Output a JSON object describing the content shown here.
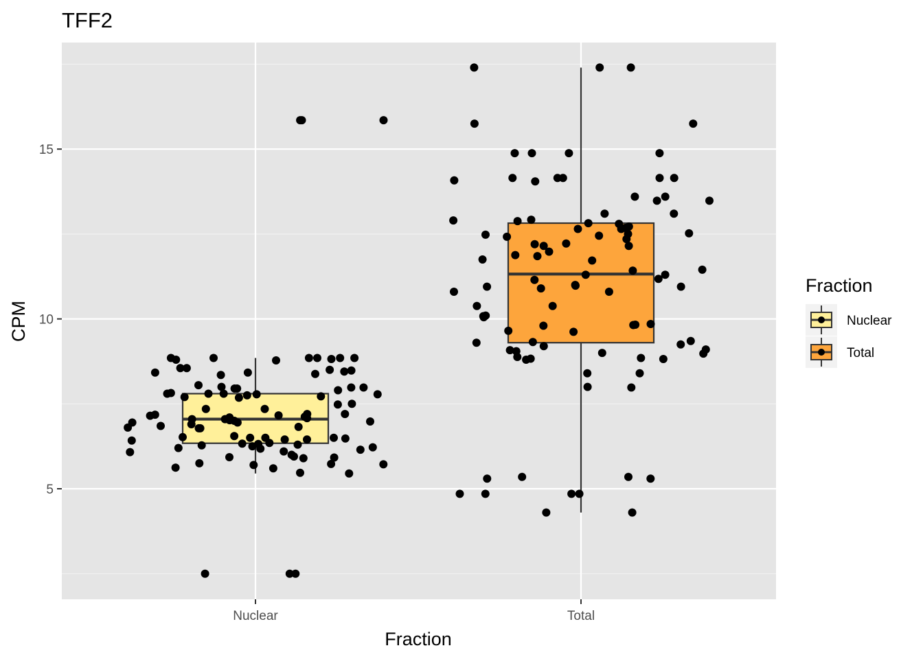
{
  "chart_data": {
    "type": "box",
    "title": "TFF2",
    "xlabel": "Fraction",
    "ylabel": "CPM",
    "categories": [
      "Nuclear",
      "Total"
    ],
    "ylim": [
      1.9,
      18.3
    ],
    "yticks": [
      5,
      10,
      15
    ],
    "grid": true,
    "legend": {
      "title": "Fraction",
      "position": "right",
      "entries": [
        {
          "label": "Nuclear",
          "color": "#FFF09A"
        },
        {
          "label": "Total",
          "color": "#FDA53C"
        }
      ]
    },
    "boxes": [
      {
        "category": "Nuclear",
        "color": "#FFF09A",
        "whisker_low": 5.45,
        "q1": 6.34,
        "median": 7.05,
        "q3": 7.8,
        "whisker_high": 8.85
      },
      {
        "category": "Total",
        "color": "#FDA53C",
        "whisker_low": 4.3,
        "q1": 9.3,
        "median": 11.32,
        "q3": 12.82,
        "whisker_high": 17.4
      }
    ],
    "points": [
      {
        "category": "Nuclear",
        "values": [
          2.5,
          2.5,
          2.5,
          15.85,
          15.85,
          15.85,
          8.85,
          8.85,
          8.85,
          8.85,
          8.85,
          8.85,
          8.82,
          8.8,
          8.78,
          8.55,
          8.55,
          8.5,
          8.48,
          8.45,
          8.42,
          8.42,
          8.38,
          8.35,
          8.05,
          8.0,
          7.98,
          7.98,
          7.95,
          7.95,
          7.9,
          7.82,
          7.8,
          7.8,
          7.8,
          7.78,
          7.78,
          7.75,
          7.72,
          7.7,
          7.68,
          7.5,
          7.48,
          7.35,
          7.35,
          7.2,
          7.2,
          7.18,
          7.16,
          7.15,
          7.12,
          7.1,
          7.08,
          7.05,
          7.05,
          7.02,
          7.0,
          6.98,
          6.95,
          6.95,
          6.9,
          6.85,
          6.82,
          6.8,
          6.78,
          6.78,
          6.55,
          6.52,
          6.5,
          6.5,
          6.5,
          6.48,
          6.45,
          6.45,
          6.42,
          6.35,
          6.33,
          6.32,
          6.3,
          6.28,
          6.25,
          6.22,
          6.2,
          6.18,
          6.15,
          6.1,
          6.08,
          6.0,
          5.95,
          5.93,
          5.92,
          5.9,
          5.75,
          5.73,
          5.72,
          5.7,
          5.62,
          5.6,
          5.47,
          5.45
        ]
      },
      {
        "category": "Total",
        "values": [
          17.4,
          17.4,
          17.4,
          15.75,
          15.75,
          14.88,
          14.88,
          14.88,
          14.88,
          14.15,
          14.15,
          14.15,
          14.15,
          14.15,
          14.08,
          14.05,
          13.6,
          13.6,
          13.48,
          13.48,
          13.1,
          13.1,
          12.92,
          12.9,
          12.88,
          12.82,
          12.8,
          12.72,
          12.68,
          12.65,
          12.65,
          12.52,
          12.5,
          12.48,
          12.45,
          12.42,
          12.35,
          12.22,
          12.2,
          12.15,
          12.15,
          11.98,
          11.88,
          11.85,
          11.75,
          11.72,
          11.45,
          11.42,
          11.3,
          11.3,
          11.18,
          11.15,
          11.0,
          10.98,
          10.95,
          10.95,
          10.9,
          10.8,
          10.8,
          10.38,
          10.38,
          10.1,
          10.08,
          10.05,
          9.85,
          9.83,
          9.82,
          9.8,
          9.65,
          9.62,
          9.35,
          9.32,
          9.3,
          9.25,
          9.2,
          9.1,
          9.08,
          9.05,
          9.0,
          8.98,
          8.88,
          8.85,
          8.83,
          8.82,
          8.8,
          8.4,
          8.4,
          8.0,
          7.98,
          5.35,
          5.35,
          5.3,
          5.3,
          4.85,
          4.85,
          4.85,
          4.85,
          4.3,
          4.3
        ]
      }
    ]
  }
}
